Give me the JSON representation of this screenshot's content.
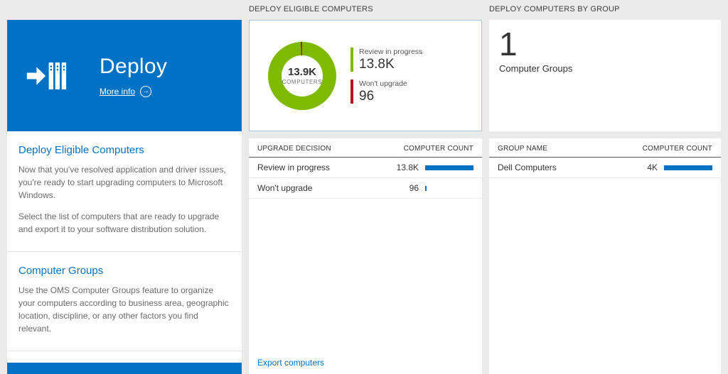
{
  "colors": {
    "accent": "#0072c6",
    "donut_green": "#7fba00",
    "donut_red": "#ba141a",
    "bar_blue": "#0072c6"
  },
  "left_tile": {
    "title": "Deploy",
    "more_info_label": "More info",
    "sections": [
      {
        "heading": "Deploy Eligible Computers",
        "paragraphs": [
          "Now that you've resolved application and driver issues, you're ready to start upgrading computers to Microsoft Windows.",
          "Select the list of computers that are ready to upgrade and export it to your software distribution solution."
        ]
      },
      {
        "heading": "Computer Groups",
        "paragraphs": [
          "Use the OMS Computer Groups feature to organize your computers according to business area, geographic location, discipline, or any other factors you find relevant."
        ]
      }
    ]
  },
  "middle_panel": {
    "header": "DEPLOY ELIGIBLE COMPUTERS",
    "table": {
      "col1": "UPGRADE DECISION",
      "col2": "COMPUTER COUNT",
      "rows": [
        {
          "label": "Review in progress",
          "value": "13.8K",
          "bar_pct": 100
        },
        {
          "label": "Won't upgrade",
          "value": "96",
          "bar_pct": 2
        }
      ]
    },
    "export_link": "Export computers"
  },
  "right_panel": {
    "header": "DEPLOY COMPUTERS BY GROUP",
    "count": "1",
    "count_label": "Computer Groups",
    "table": {
      "col1": "GROUP NAME",
      "col2": "COMPUTER COUNT",
      "rows": [
        {
          "label": "Dell Computers",
          "value": "4K",
          "bar_pct": 100
        }
      ]
    }
  },
  "chart_data": {
    "type": "pie",
    "title": "DEPLOY ELIGIBLE COMPUTERS",
    "center_value": "13.9K",
    "center_label": "COMPUTERS",
    "legend_position": "right",
    "series": [
      {
        "name": "Review in progress",
        "value": 13800,
        "display": "13.8K",
        "color": "#7fba00"
      },
      {
        "name": "Won't upgrade",
        "value": 96,
        "display": "96",
        "color": "#ba141a"
      }
    ]
  }
}
